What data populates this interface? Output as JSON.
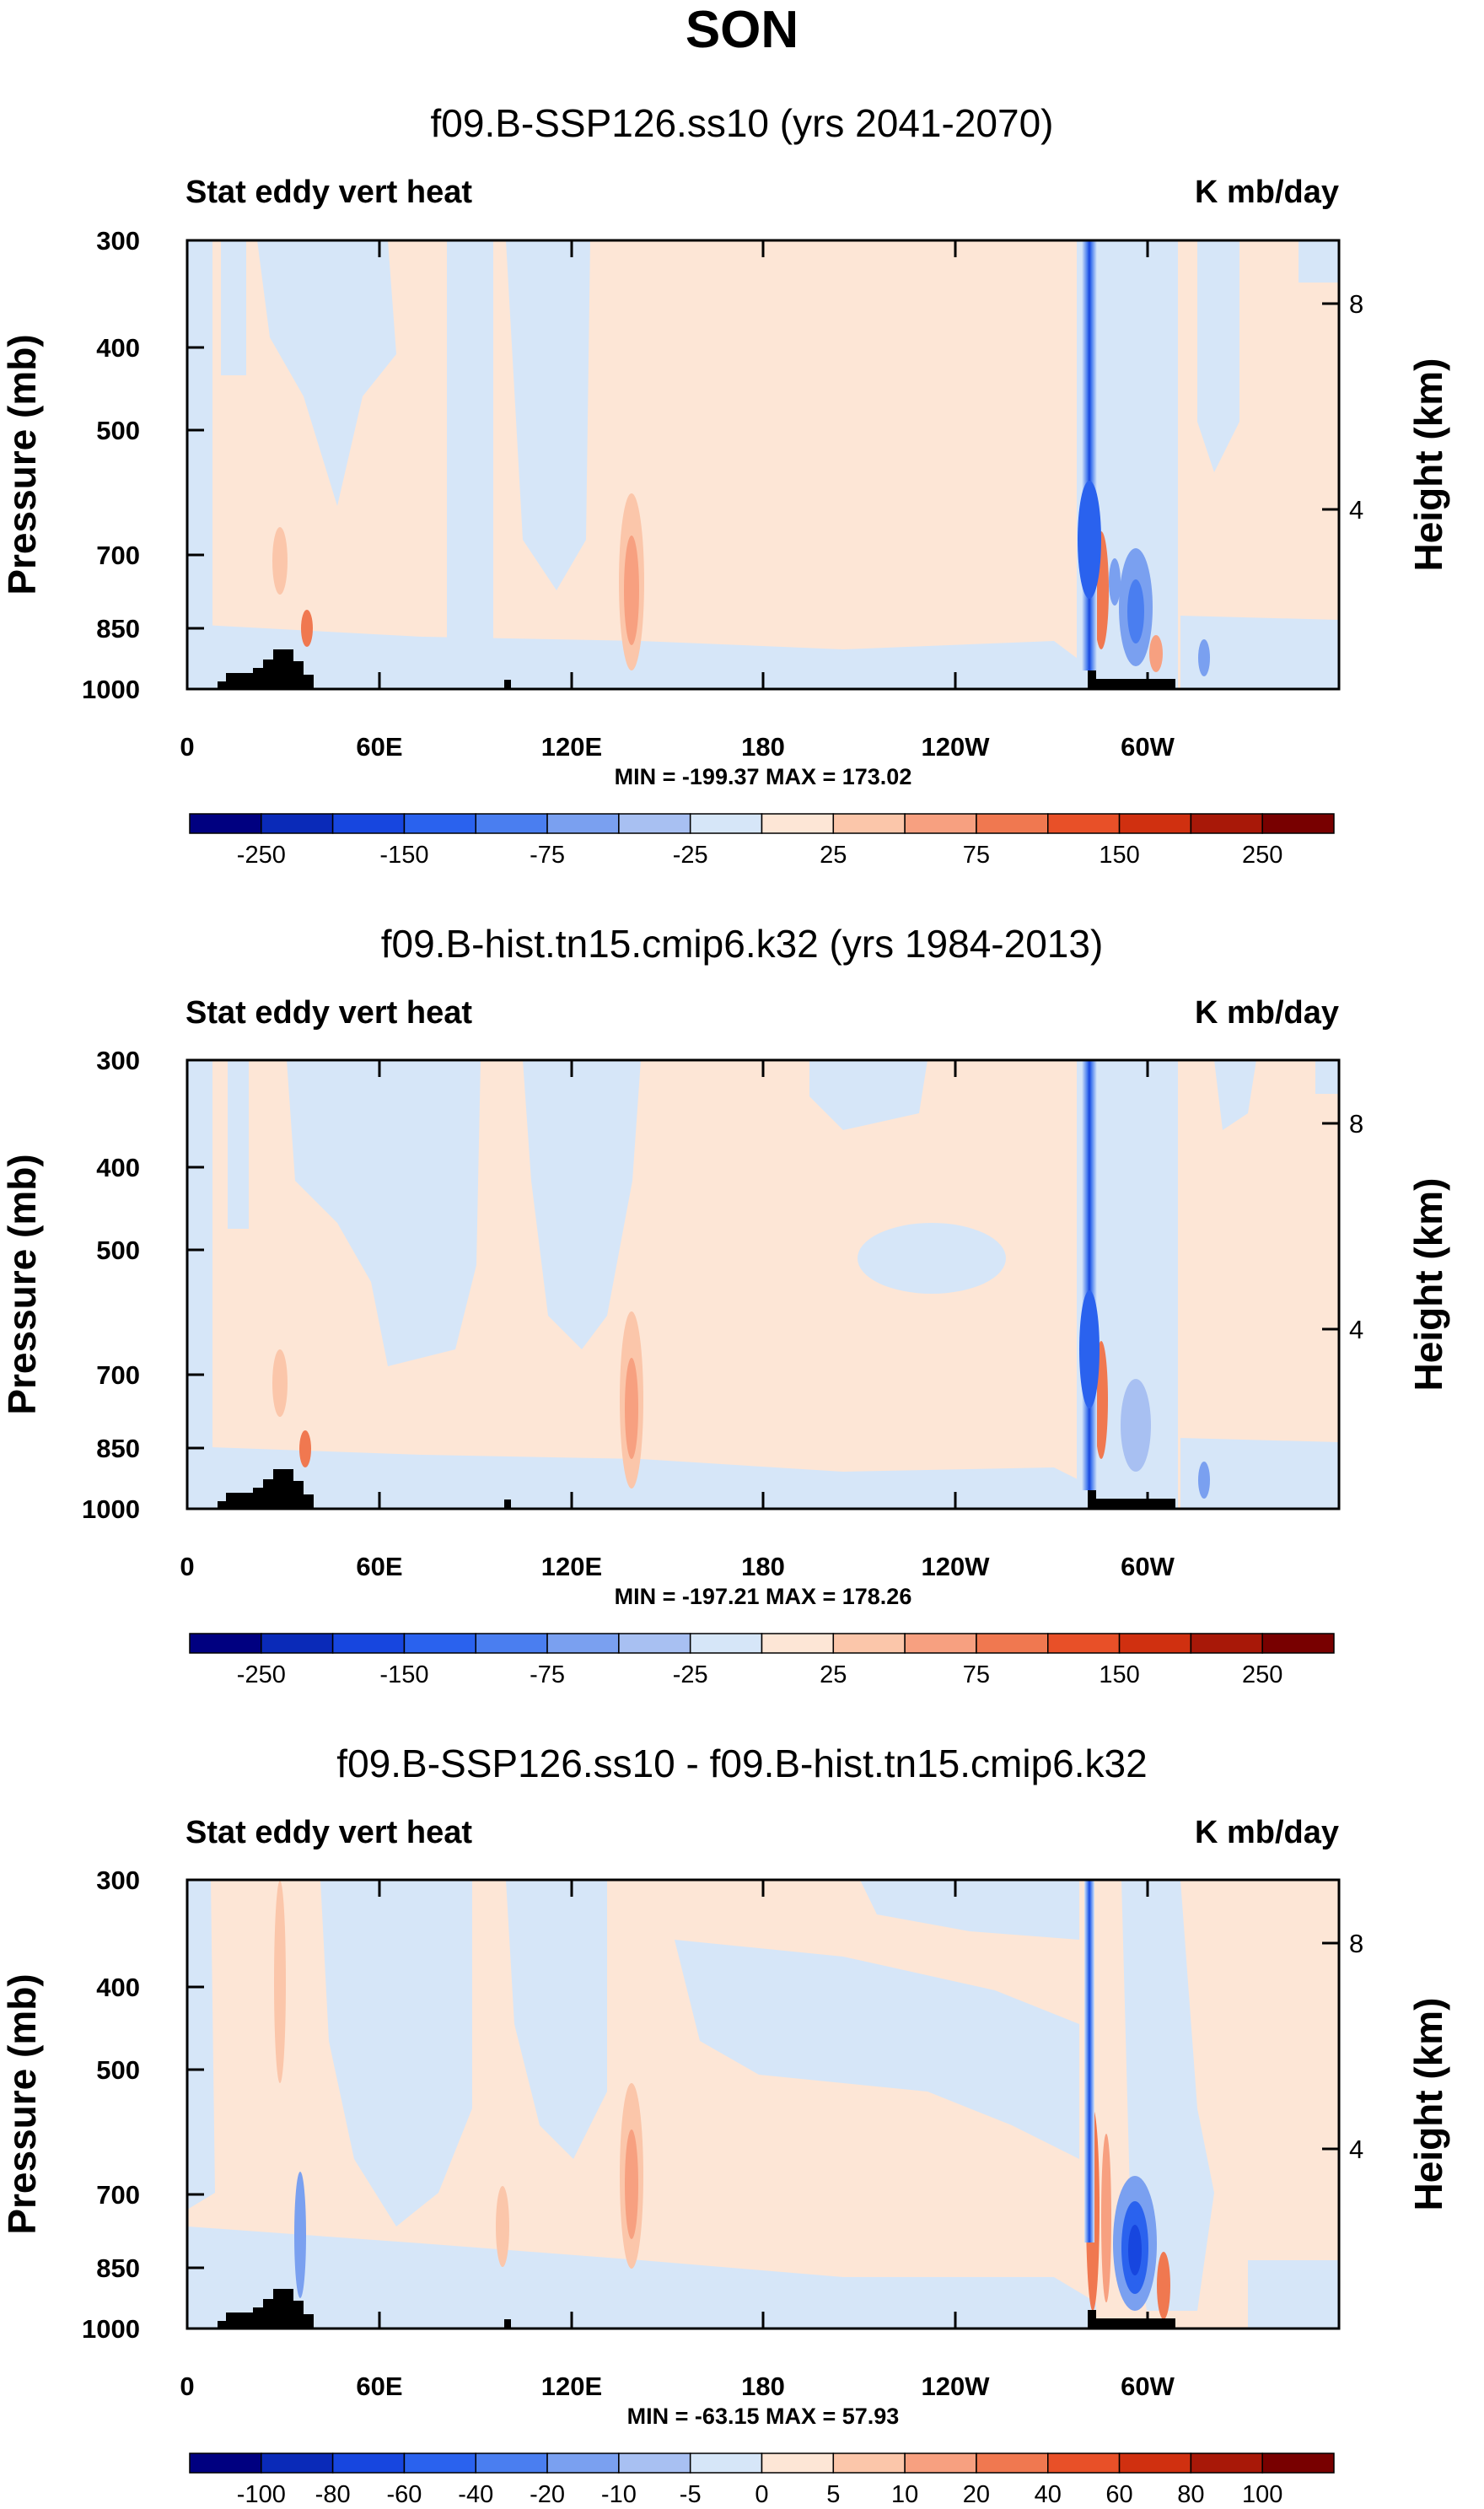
{
  "title": "SON",
  "chart_data": [
    {
      "type": "heatmap",
      "subtitle": "f09.B-SSP126.ss10 (yrs 2041-2070)",
      "left_string": "Stat eddy vert heat",
      "right_string": "K mb/day",
      "ylabel": "Pressure (mb)",
      "ylabel_right": "Height (km)",
      "y_ticks": [
        "300",
        "400",
        "500",
        "700",
        "850",
        "1000"
      ],
      "y_right_ticks": [
        "8",
        "4"
      ],
      "x_ticks": [
        "0",
        "60E",
        "120E",
        "180",
        "120W",
        "60W"
      ],
      "stats": "MIN = -199.37   MAX = 173.02",
      "min": -199.37,
      "max": 173.02,
      "colorbar_labels": [
        "-250",
        "-150",
        "-75",
        "-25",
        "25",
        "75",
        "150",
        "250"
      ]
    },
    {
      "type": "heatmap",
      "subtitle": "f09.B-hist.tn15.cmip6.k32 (yrs 1984-2013)",
      "left_string": "Stat eddy vert heat",
      "right_string": "K mb/day",
      "ylabel": "Pressure (mb)",
      "ylabel_right": "Height (km)",
      "y_ticks": [
        "300",
        "400",
        "500",
        "700",
        "850",
        "1000"
      ],
      "y_right_ticks": [
        "8",
        "4"
      ],
      "x_ticks": [
        "0",
        "60E",
        "120E",
        "180",
        "120W",
        "60W"
      ],
      "stats": "MIN = -197.21   MAX = 178.26",
      "min": -197.21,
      "max": 178.26,
      "colorbar_labels": [
        "-250",
        "-150",
        "-75",
        "-25",
        "25",
        "75",
        "150",
        "250"
      ]
    },
    {
      "type": "heatmap",
      "subtitle": "f09.B-SSP126.ss10 - f09.B-hist.tn15.cmip6.k32",
      "left_string": "Stat eddy vert heat",
      "right_string": "K mb/day",
      "ylabel": "Pressure (mb)",
      "ylabel_right": "Height (km)",
      "y_ticks": [
        "300",
        "400",
        "500",
        "700",
        "850",
        "1000"
      ],
      "y_right_ticks": [
        "8",
        "4"
      ],
      "x_ticks": [
        "0",
        "60E",
        "120E",
        "180",
        "120W",
        "60W"
      ],
      "stats": "MIN = -63.15   MAX = 57.93",
      "min": -63.15,
      "max": 57.93,
      "colorbar_labels": [
        "-100",
        "-80",
        "-60",
        "-40",
        "-20",
        "-10",
        "-5",
        "0",
        "5",
        "10",
        "20",
        "40",
        "60",
        "80",
        "100"
      ]
    }
  ],
  "colors": {
    "bg_positive": "#fde6d6",
    "bg_negative": "#d6e6f8",
    "colorbar_16": [
      "#000080",
      "#0a2ab8",
      "#1746df",
      "#2a62ee",
      "#4a7ef0",
      "#7aa0f0",
      "#a8c0f2",
      "#d6e6f8",
      "#fde6d6",
      "#fbc6aa",
      "#f7a080",
      "#f07850",
      "#e85028",
      "#d03010",
      "#a81808",
      "#780000"
    ]
  }
}
